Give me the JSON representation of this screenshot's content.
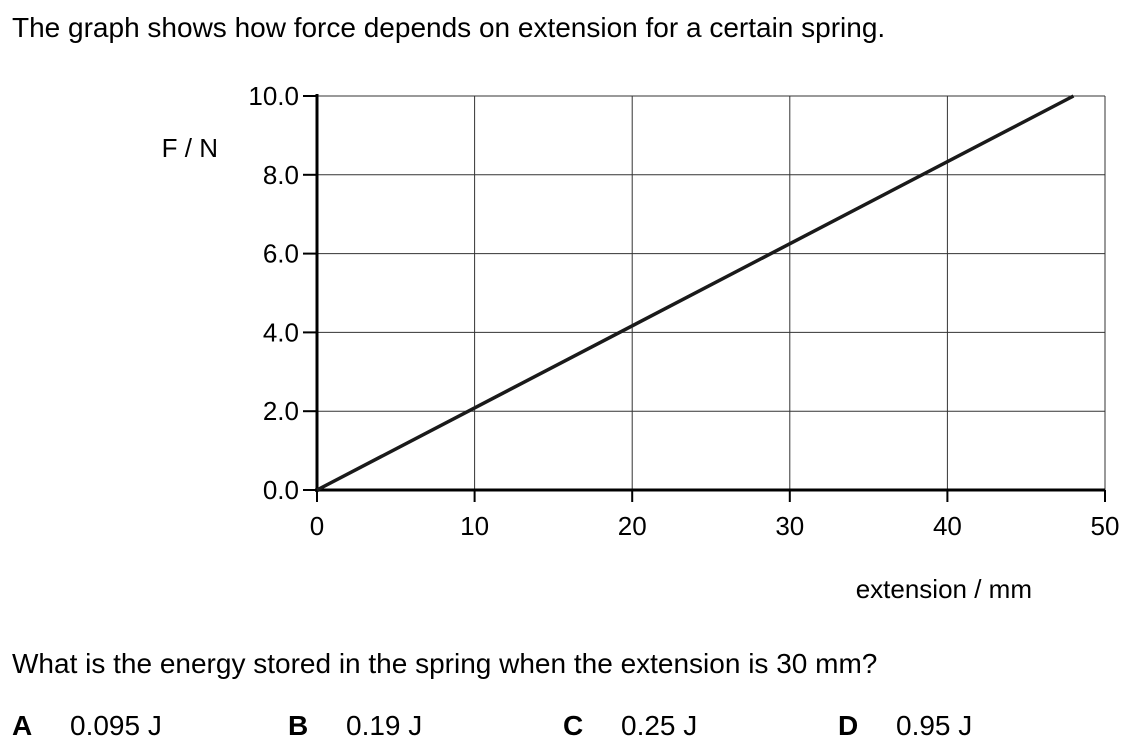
{
  "intro": "The graph shows how force depends on extension for a certain spring.",
  "question": "What is the energy stored in the spring when the extension is 30 mm?",
  "options": [
    {
      "letter": "A",
      "text": "0.095 J"
    },
    {
      "letter": "B",
      "text": "0.19 J"
    },
    {
      "letter": "C",
      "text": "0.25 J"
    },
    {
      "letter": "D",
      "text": "0.95 J"
    }
  ],
  "chart_data": {
    "type": "line",
    "title": "",
    "xlabel": "extension / mm",
    "ylabel": "F / N",
    "xlim": [
      0,
      50
    ],
    "ylim": [
      0,
      10
    ],
    "x_ticks": [
      "0",
      "10",
      "20",
      "30",
      "40",
      "50"
    ],
    "y_ticks": [
      "0.0",
      "2.0",
      "4.0",
      "6.0",
      "8.0",
      "10.0"
    ],
    "grid": true,
    "series": [
      {
        "x": [
          0,
          48
        ],
        "y": [
          0,
          10
        ]
      }
    ],
    "line_color": "#1a1a1a"
  }
}
